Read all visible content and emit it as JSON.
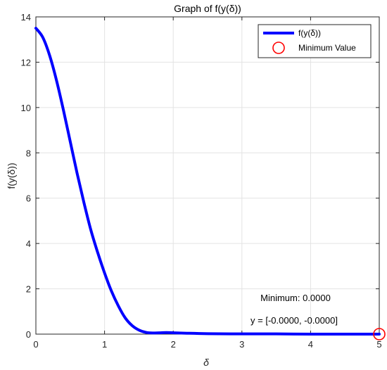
{
  "chart_data": {
    "type": "line",
    "title": "Graph of f(y(δ))",
    "xlabel": "δ",
    "ylabel": "f(y(δ))",
    "xlim": [
      0,
      5
    ],
    "ylim": [
      0,
      14
    ],
    "x_ticks": [
      0,
      1,
      2,
      3,
      4,
      5
    ],
    "y_ticks": [
      0,
      2,
      4,
      6,
      8,
      10,
      12,
      14
    ],
    "grid": true,
    "legend_position": "top-right",
    "series": [
      {
        "name": "f(y(δ))",
        "color": "#0000ff",
        "x": [
          0,
          0.1,
          0.2,
          0.3,
          0.4,
          0.5,
          0.6,
          0.7,
          0.8,
          0.9,
          1.0,
          1.1,
          1.2,
          1.3,
          1.4,
          1.5,
          1.6,
          1.7,
          1.8,
          1.9,
          2.0,
          2.2,
          2.5,
          3.0,
          3.5,
          4.0,
          4.5,
          5.0
        ],
        "y": [
          13.5,
          13.1,
          12.3,
          11.2,
          9.9,
          8.5,
          7.1,
          5.8,
          4.6,
          3.6,
          2.7,
          1.9,
          1.25,
          0.72,
          0.38,
          0.18,
          0.08,
          0.05,
          0.06,
          0.07,
          0.06,
          0.04,
          0.02,
          0.01,
          0.01,
          0.0,
          0.0,
          0.0
        ]
      }
    ],
    "minimum_marker": {
      "name": "Minimum Value",
      "x": 5,
      "y": 0,
      "color": "#ff0000"
    },
    "annotations": {
      "minimum_text": "Minimum: 0.0000",
      "y_text": "y = [-0.0000, -0.0000]"
    }
  }
}
